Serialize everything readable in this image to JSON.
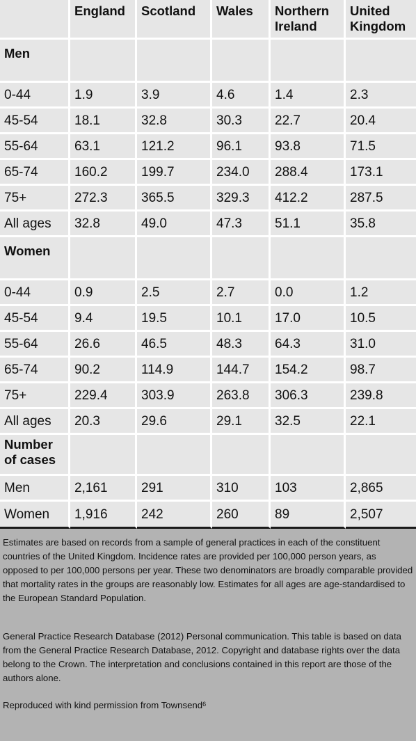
{
  "table": {
    "columns": [
      "",
      "England",
      "Scotland",
      "Wales",
      "Northern Ireland",
      "United Kingdom"
    ],
    "sections": [
      {
        "title": "Men",
        "rows": [
          [
            "0-44",
            "1.9",
            "3.9",
            "4.6",
            "1.4",
            "2.3"
          ],
          [
            "45-54",
            "18.1",
            "32.8",
            "30.3",
            "22.7",
            "20.4"
          ],
          [
            "55-64",
            "63.1",
            "121.2",
            "96.1",
            "93.8",
            "71.5"
          ],
          [
            "65-74",
            "160.2",
            "199.7",
            "234.0",
            "288.4",
            "173.1"
          ],
          [
            "75+",
            "272.3",
            "365.5",
            "329.3",
            "412.2",
            "287.5"
          ],
          [
            "All ages",
            "32.8",
            "49.0",
            "47.3",
            "51.1",
            "35.8"
          ]
        ]
      },
      {
        "title": "Women",
        "rows": [
          [
            "0-44",
            "0.9",
            "2.5",
            "2.7",
            "0.0",
            "1.2"
          ],
          [
            "45-54",
            "9.4",
            "19.5",
            "10.1",
            "17.0",
            "10.5"
          ],
          [
            "55-64",
            "26.6",
            "46.5",
            "48.3",
            "64.3",
            "31.0"
          ],
          [
            "65-74",
            "90.2",
            "114.9",
            "144.7",
            "154.2",
            "98.7"
          ],
          [
            "75+",
            "229.4",
            "303.9",
            "263.8",
            "306.3",
            "239.8"
          ],
          [
            "All ages",
            "20.3",
            "29.6",
            "29.1",
            "32.5",
            "22.1"
          ]
        ]
      },
      {
        "title": "Number of cases",
        "rows": [
          [
            "Men",
            "2,161",
            "291",
            "310",
            "103",
            "2,865"
          ],
          [
            "Women",
            "1,916",
            "242",
            "260",
            "89",
            "2,507"
          ]
        ]
      }
    ]
  },
  "notes": {
    "estimates": "Estimates are based on records from a sample of general practices in each of the constituent countries of the United Kingdom. Incidence rates are provided per 100,000 person years, as opposed to per 100,000 persons per year. These two denominators are broadly comparable provided that mortality rates in the groups are reasonably low. Estimates for all ages are age-standardised to the European Standard Population.",
    "source": "General Practice Research Database (2012) Personal communication. This table is based on data from the General Practice Research Database, 2012. Copyright and database rights over the data belong to the Crown. The interpretation and conclusions contained in this report are those of the authors alone.",
    "permission": "Reproduced with kind permission from Townsend",
    "permission_ref": "6"
  }
}
